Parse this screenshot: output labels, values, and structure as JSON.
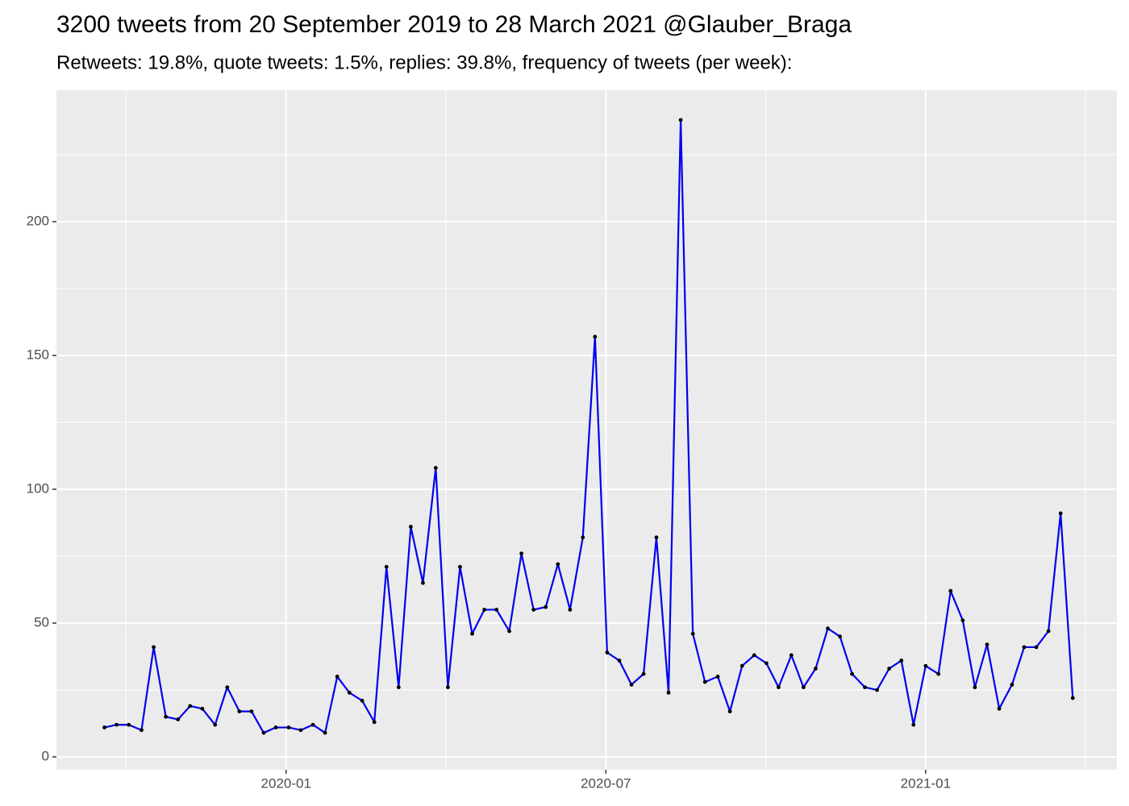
{
  "chart_data": {
    "type": "line",
    "title": "3200 tweets from 20 September 2019 to 28 March 2021 @Glauber_Braga",
    "subtitle": "Retweets: 19.8%, quote tweets: 1.5%, replies: 39.8%, frequency of tweets (per week):",
    "x": [
      2019.716,
      2019.735,
      2019.754,
      2019.774,
      2019.793,
      2019.812,
      2019.831,
      2019.85,
      2019.869,
      2019.889,
      2019.908,
      2019.927,
      2019.946,
      2019.965,
      2019.984,
      2020.004,
      2020.023,
      2020.042,
      2020.061,
      2020.08,
      2020.099,
      2020.119,
      2020.138,
      2020.157,
      2020.176,
      2020.195,
      2020.214,
      2020.234,
      2020.253,
      2020.272,
      2020.291,
      2020.31,
      2020.329,
      2020.349,
      2020.368,
      2020.387,
      2020.406,
      2020.425,
      2020.444,
      2020.464,
      2020.483,
      2020.502,
      2020.521,
      2020.54,
      2020.559,
      2020.579,
      2020.598,
      2020.617,
      2020.636,
      2020.655,
      2020.675,
      2020.694,
      2020.713,
      2020.732,
      2020.751,
      2020.77,
      2020.79,
      2020.809,
      2020.828,
      2020.847,
      2020.866,
      2020.885,
      2020.905,
      2020.924,
      2020.943,
      2020.962,
      2020.981,
      2021.0,
      2021.02,
      2021.039,
      2021.058,
      2021.077,
      2021.096,
      2021.115,
      2021.135,
      2021.154,
      2021.173,
      2021.192,
      2021.211,
      2021.23
    ],
    "series": [
      {
        "color": "#0000ee",
        "point_color": "#000000",
        "values": [
          11,
          12,
          12,
          10,
          41,
          15,
          14,
          19,
          18,
          12,
          26,
          17,
          17,
          9,
          11,
          11,
          10,
          12,
          9,
          30,
          24,
          21,
          13,
          71,
          26,
          86,
          65,
          108,
          26,
          71,
          46,
          55,
          55,
          47,
          76,
          55,
          56,
          72,
          55,
          82,
          157,
          39,
          36,
          27,
          31,
          82,
          24,
          238,
          46,
          28,
          30,
          17,
          34,
          38,
          35,
          26,
          38,
          26,
          33,
          48,
          45,
          31,
          26,
          25,
          33,
          36,
          12,
          34,
          31,
          62,
          51,
          26,
          42,
          18,
          27,
          41,
          41,
          47,
          91,
          22
        ]
      }
    ],
    "xlim": [
      2019.641,
      2021.299
    ],
    "xticks": [
      {
        "value": 2020.0,
        "label": "2020-01"
      },
      {
        "value": 2020.5,
        "label": "2020-07"
      },
      {
        "value": 2021.0,
        "label": "2021-01"
      }
    ],
    "ylim": [
      -4.8,
      249.1
    ],
    "yticks": [
      0,
      50,
      100,
      150,
      200
    ],
    "grid": true
  }
}
